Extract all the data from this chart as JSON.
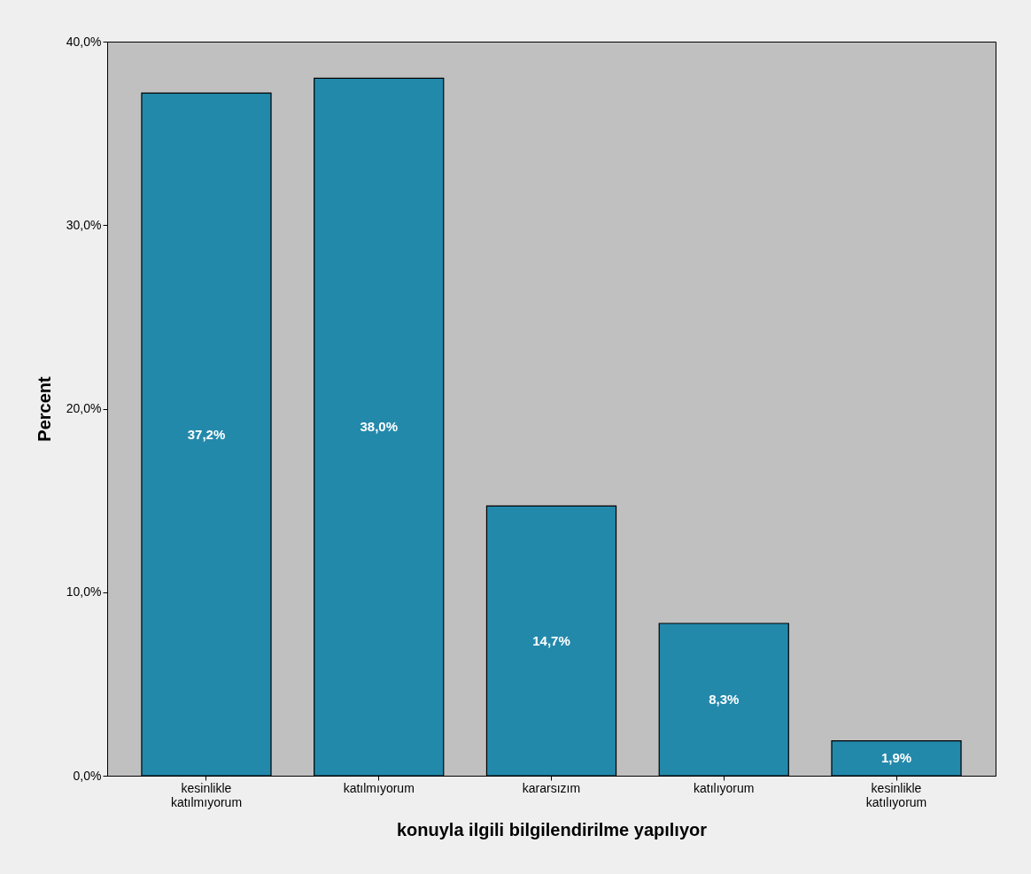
{
  "chart_data": {
    "type": "bar",
    "categories": [
      "kesinlikle katılmıyorum",
      "katılmıyorum",
      "kararsızım",
      "katılıyorum",
      "kesinlikle katılıyorum"
    ],
    "values": [
      37.2,
      38.0,
      14.7,
      8.3,
      1.9
    ],
    "color": "#2389ab",
    "xlabel": "konuyla ilgili bilgilendirilme yapılıyor",
    "ylabel": "Percent",
    "ylim": [
      0,
      40
    ],
    "yticks": [
      {
        "value": 0,
        "label": "0,0%"
      },
      {
        "value": 10,
        "label": "10,0%"
      },
      {
        "value": 20,
        "label": "20,0%"
      },
      {
        "value": 30,
        "label": "30,0%"
      },
      {
        "value": 40,
        "label": "40,0%"
      }
    ],
    "value_labels": [
      "37,2%",
      "38,0%",
      "14,7%",
      "8,3%",
      "1,9%"
    ],
    "grid": false
  }
}
